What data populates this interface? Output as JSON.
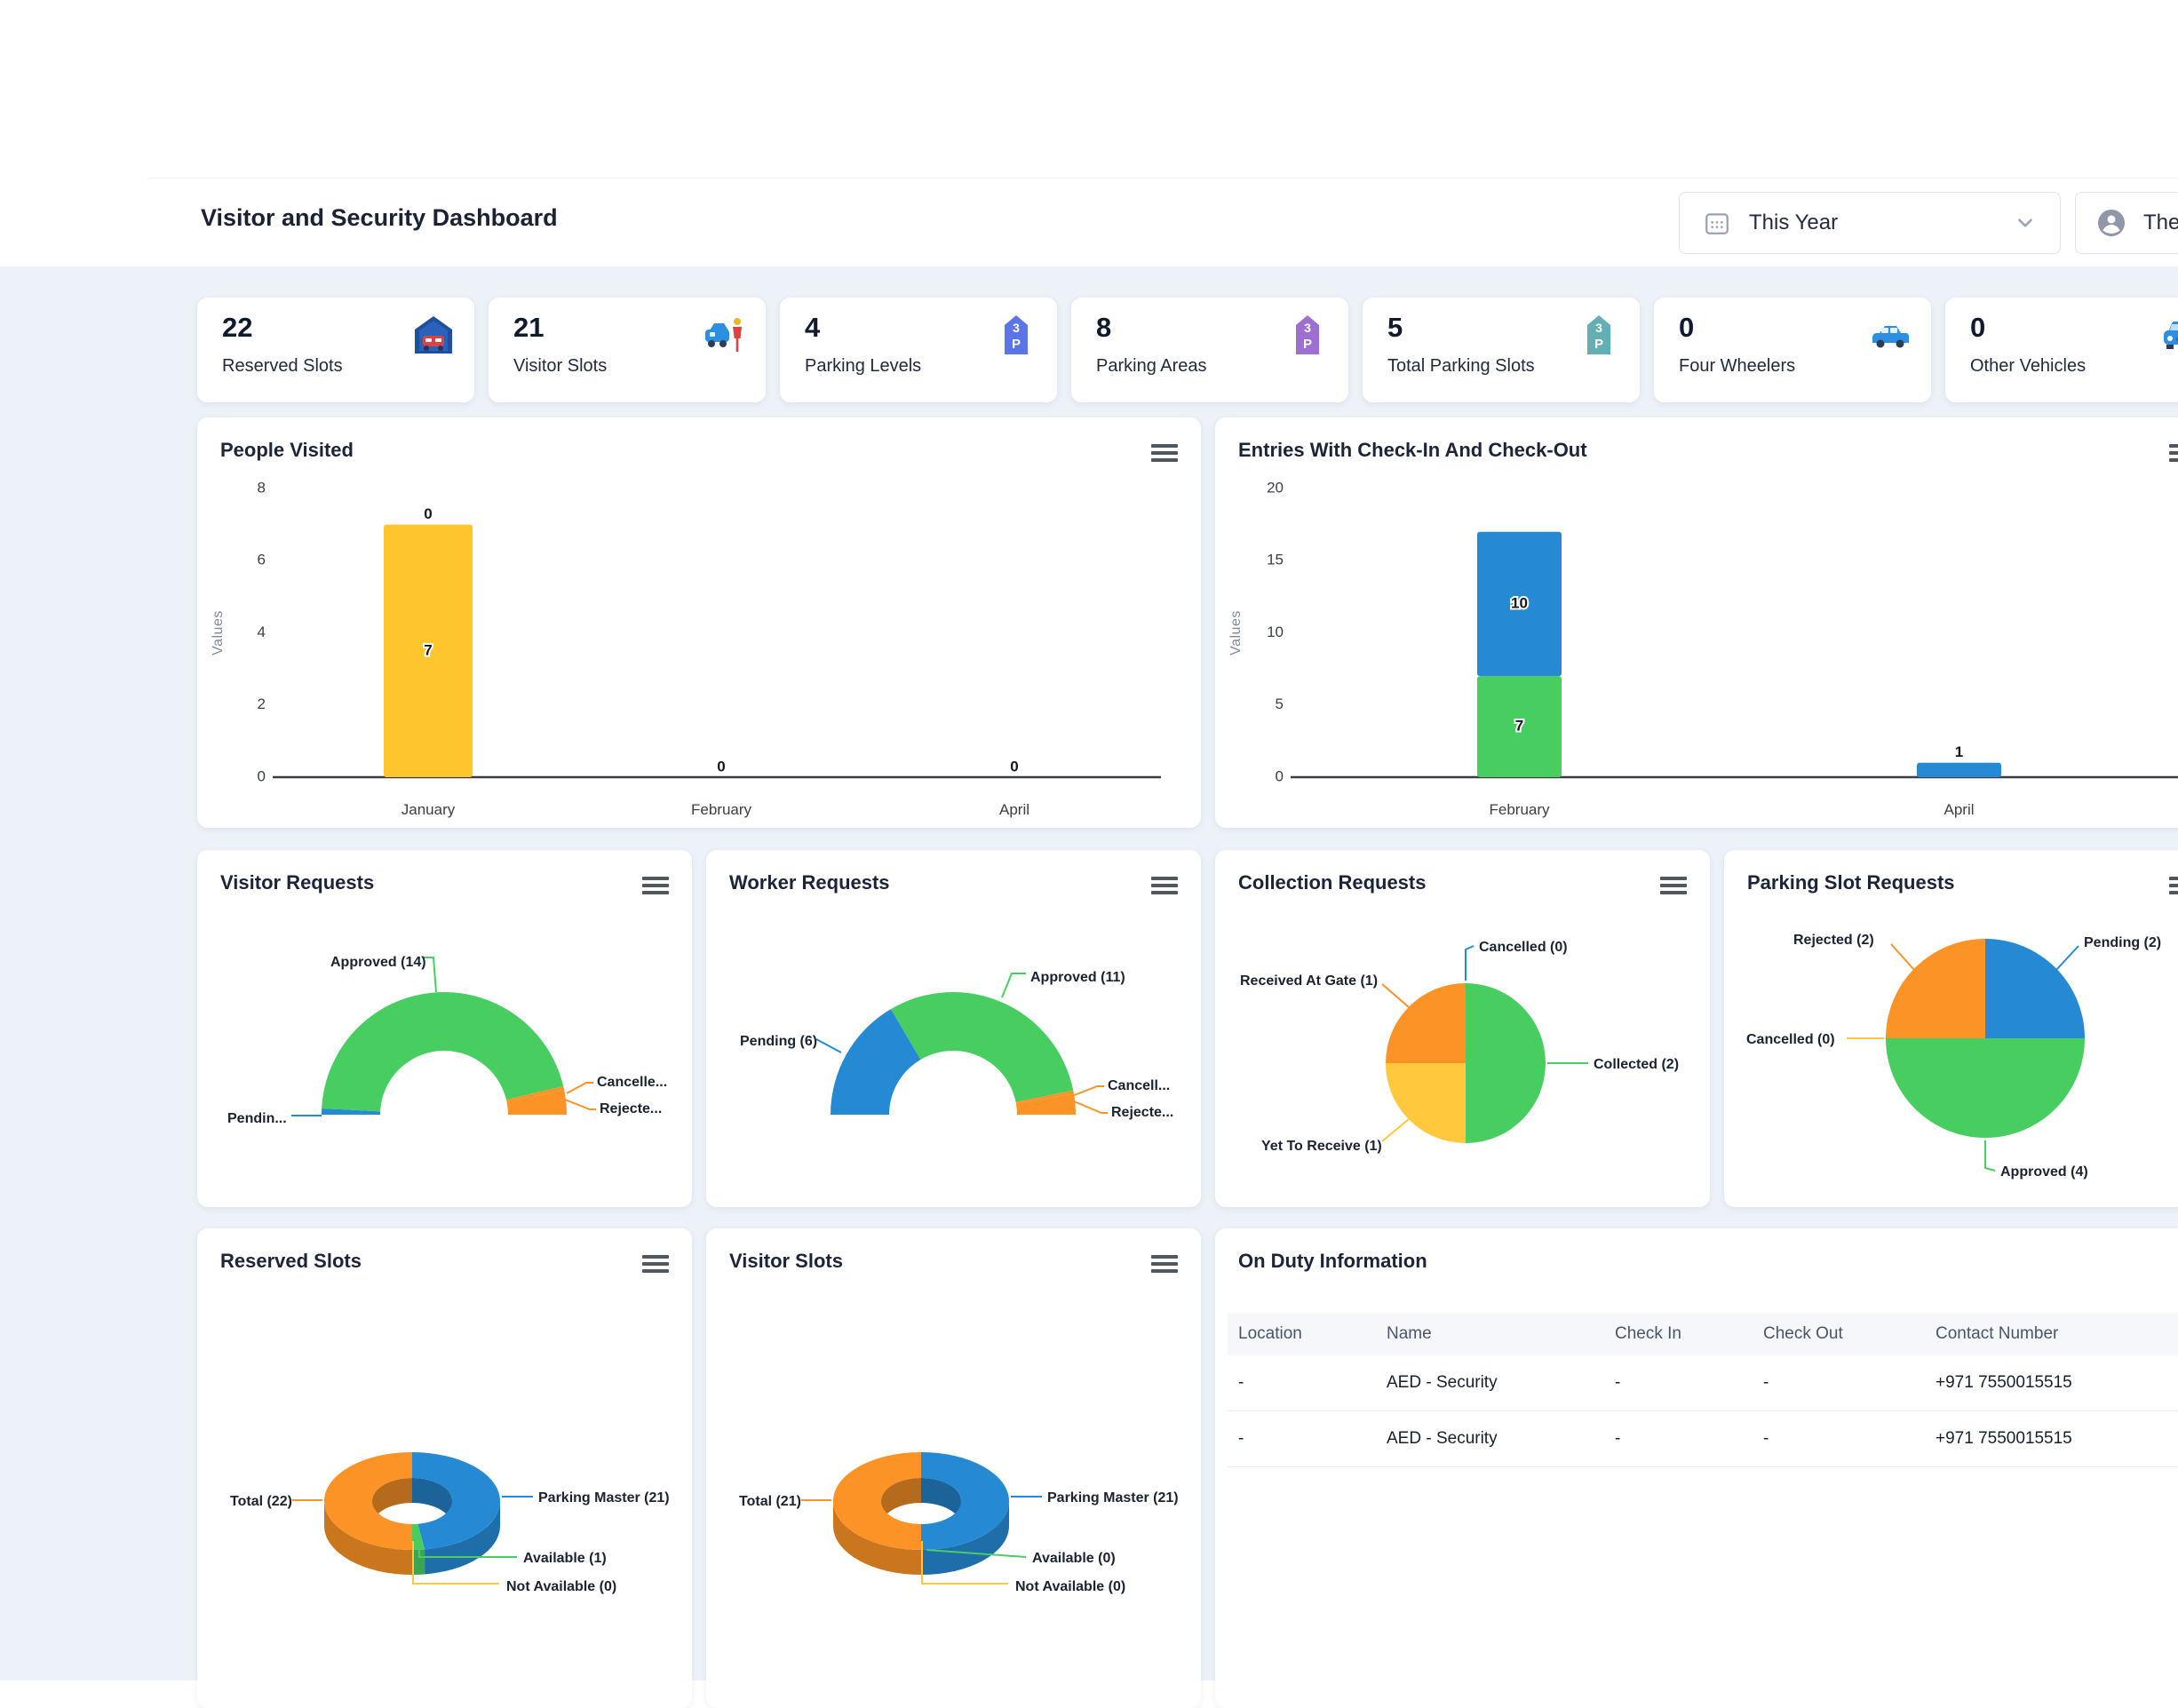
{
  "header": {
    "title": "Visitor and Security Dashboard",
    "period_selector": {
      "value": "This Year"
    },
    "user_menu": {
      "label": "The"
    }
  },
  "stat_cards": [
    {
      "value": "22",
      "label": "Reserved Slots",
      "icon": "garage-car-icon"
    },
    {
      "value": "21",
      "label": "Visitor Slots",
      "icon": "car-person-icon"
    },
    {
      "value": "4",
      "label": "Parking Levels",
      "icon": "parking-tower-icon",
      "icon_color": "#5b74e8"
    },
    {
      "value": "8",
      "label": "Parking Areas",
      "icon": "parking-tower-icon",
      "icon_color": "#9d6fd0"
    },
    {
      "value": "5",
      "label": "Total Parking Slots",
      "icon": "parking-tower-icon",
      "icon_color": "#63afb4"
    },
    {
      "value": "0",
      "label": "Four Wheelers",
      "icon": "car-side-icon"
    },
    {
      "value": "0",
      "label": "Other Vehicles",
      "icon": "car-front-icon"
    }
  ],
  "colors": {
    "blue": "#2589D3",
    "green": "#48CD61",
    "orange": "#FB9327",
    "yellow": "#FEC52D",
    "gold": "#FFC83D",
    "page_bg": "#edf1f8"
  },
  "chart_data": [
    {
      "id": "people-visited",
      "type": "bar",
      "stacked": true,
      "title": "People Visited",
      "ylabel": "Values",
      "ylim": [
        0,
        8
      ],
      "yticks": [
        0,
        2,
        4,
        6,
        8
      ],
      "label_zeros": true,
      "categories": [
        "January",
        "February",
        "April"
      ],
      "series": [
        {
          "name": "",
          "color": "#FEC52D",
          "values": [
            7,
            0,
            0
          ]
        },
        {
          "name": "",
          "color": "#2589D3",
          "values": [
            0,
            0,
            0
          ]
        }
      ]
    },
    {
      "id": "entries-checkin-checkout",
      "type": "bar",
      "stacked": true,
      "title": "Entries With Check-In And Check-Out",
      "ylabel": "Values",
      "ylim": [
        0,
        20
      ],
      "yticks": [
        0,
        5,
        10,
        15,
        20
      ],
      "label_zeros": false,
      "categories": [
        "February",
        "April"
      ],
      "series": [
        {
          "name": "",
          "color": "#48CD61",
          "values": [
            7,
            0
          ]
        },
        {
          "name": "",
          "color": "#2589D3",
          "values": [
            10,
            1
          ]
        }
      ]
    },
    {
      "id": "visitor-requests",
      "type": "semi-donut",
      "title": "Visitor Requests",
      "slices": [
        {
          "label": "Pendin...",
          "color": "#2589D3",
          "value": 0.25
        },
        {
          "label": "Approved (14)",
          "color": "#48CD61",
          "value": 14
        },
        {
          "label": "Cancelle...",
          "color": "#FB9327",
          "value": 0.15
        },
        {
          "label": "Rejecte...",
          "color": "#FB9327",
          "value": 1
        }
      ]
    },
    {
      "id": "worker-requests",
      "type": "semi-donut",
      "title": "Worker Requests",
      "slices": [
        {
          "label": "Pending (6)",
          "color": "#2589D3",
          "value": 6
        },
        {
          "label": "Approved (11)",
          "color": "#48CD61",
          "value": 11
        },
        {
          "label": "Cancell...",
          "color": "#FB9327",
          "value": 0.15
        },
        {
          "label": "Rejecte...",
          "color": "#FB9327",
          "value": 1
        }
      ]
    },
    {
      "id": "collection-requests",
      "type": "pie",
      "title": "Collection Requests",
      "slices": [
        {
          "label": "Collected (2)",
          "color": "#48CD61",
          "value": 2
        },
        {
          "label": "Yet To Receive (1)",
          "color": "#FFC83D",
          "value": 1
        },
        {
          "label": "Received At Gate (1)",
          "color": "#FB9327",
          "value": 1
        },
        {
          "label": "Cancelled (0)",
          "color": "#2589D3",
          "value": 0
        }
      ]
    },
    {
      "id": "parking-slot-requests",
      "type": "pie",
      "title": "Parking Slot Requests",
      "slices": [
        {
          "label": "Pending (2)",
          "color": "#2589D3",
          "value": 2
        },
        {
          "label": "Approved (4)",
          "color": "#48CD61",
          "value": 4
        },
        {
          "label": "Cancelled (0)",
          "color": "#FFC83D",
          "value": 0
        },
        {
          "label": "Rejected (2)",
          "color": "#FB9327",
          "value": 2
        }
      ]
    },
    {
      "id": "reserved-slots-donut",
      "type": "donut3d",
      "title": "Reserved Slots",
      "slices": [
        {
          "label": "Parking Master (21)",
          "color": "#2589D3",
          "value": 21
        },
        {
          "label": "Available (1)",
          "color": "#48CD61",
          "value": 1
        },
        {
          "label": "Not Available (0)",
          "color": "#FFC83D",
          "value": 0
        },
        {
          "label": "Total (22)",
          "color": "#FB9327",
          "value": 22
        }
      ]
    },
    {
      "id": "visitor-slots-donut",
      "type": "donut3d",
      "title": "Visitor Slots",
      "slices": [
        {
          "label": "Parking Master (21)",
          "color": "#2589D3",
          "value": 21
        },
        {
          "label": "Available (0)",
          "color": "#48CD61",
          "value": 0
        },
        {
          "label": "Not Available (0)",
          "color": "#FFC83D",
          "value": 0
        },
        {
          "label": "Total (21)",
          "color": "#FB9327",
          "value": 21
        }
      ]
    }
  ],
  "on_duty": {
    "title": "On Duty Information",
    "headers": [
      "Location",
      "Name",
      "Check In",
      "Check Out",
      "Contact Number"
    ],
    "rows": [
      [
        "-",
        "AED - Security",
        "-",
        "-",
        "+971 7550015515"
      ],
      [
        "-",
        "AED - Security",
        "-",
        "-",
        "+971 7550015515"
      ]
    ]
  }
}
